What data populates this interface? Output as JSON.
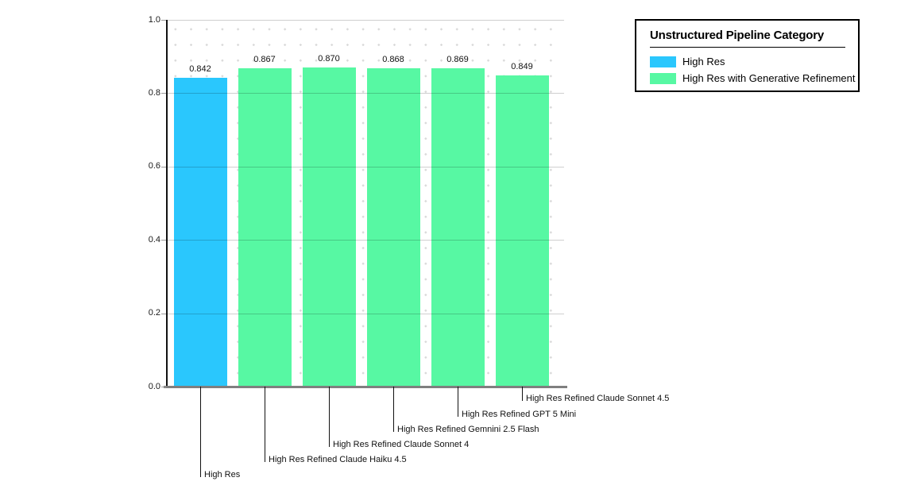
{
  "legend": {
    "title": "Unstructured Pipeline Category",
    "items": [
      {
        "label": "High Res",
        "color": "#2AC7FD"
      },
      {
        "label": "High Res with Generative Refinement",
        "color": "#57F8A3"
      }
    ]
  },
  "chart_data": {
    "type": "bar",
    "title": "",
    "xlabel": "",
    "ylabel": "",
    "categories": [
      "High Res",
      "High Res Refined Claude Haiku 4.5",
      "High Res Refined Claude Sonnet 4",
      "High Res Refined Gemnini 2.5 Flash",
      "High Res Refined GPT 5 Mini",
      "High Res Refined Claude Sonnet 4.5"
    ],
    "values": [
      0.842,
      0.867,
      0.87,
      0.868,
      0.869,
      0.849
    ],
    "bar_value_labels": [
      "0.842",
      "0.867",
      "0.870",
      "0.868",
      "0.869",
      "0.849"
    ],
    "bar_colors": [
      "#2AC7FD",
      "#57F8A3",
      "#57F8A3",
      "#57F8A3",
      "#57F8A3",
      "#57F8A3"
    ],
    "series": [
      {
        "name": "High Res",
        "color": "#2AC7FD",
        "category_indices": [
          0
        ]
      },
      {
        "name": "High Res with Generative Refinement",
        "color": "#57F8A3",
        "category_indices": [
          1,
          2,
          3,
          4,
          5
        ]
      }
    ],
    "ylim": [
      0.0,
      1.0
    ],
    "ytick_labels": [
      "0.0",
      "0.2",
      "0.4",
      "0.6",
      "0.8",
      "1.0"
    ],
    "yticks": [
      0.0,
      0.2,
      0.4,
      0.6,
      0.8,
      1.0
    ],
    "grid": "horizontal major gridlines on top of bars, dotted minor grid background",
    "legend_position": "outside top-right",
    "category_label_style": "staggered below axis with vertical leader lines"
  }
}
